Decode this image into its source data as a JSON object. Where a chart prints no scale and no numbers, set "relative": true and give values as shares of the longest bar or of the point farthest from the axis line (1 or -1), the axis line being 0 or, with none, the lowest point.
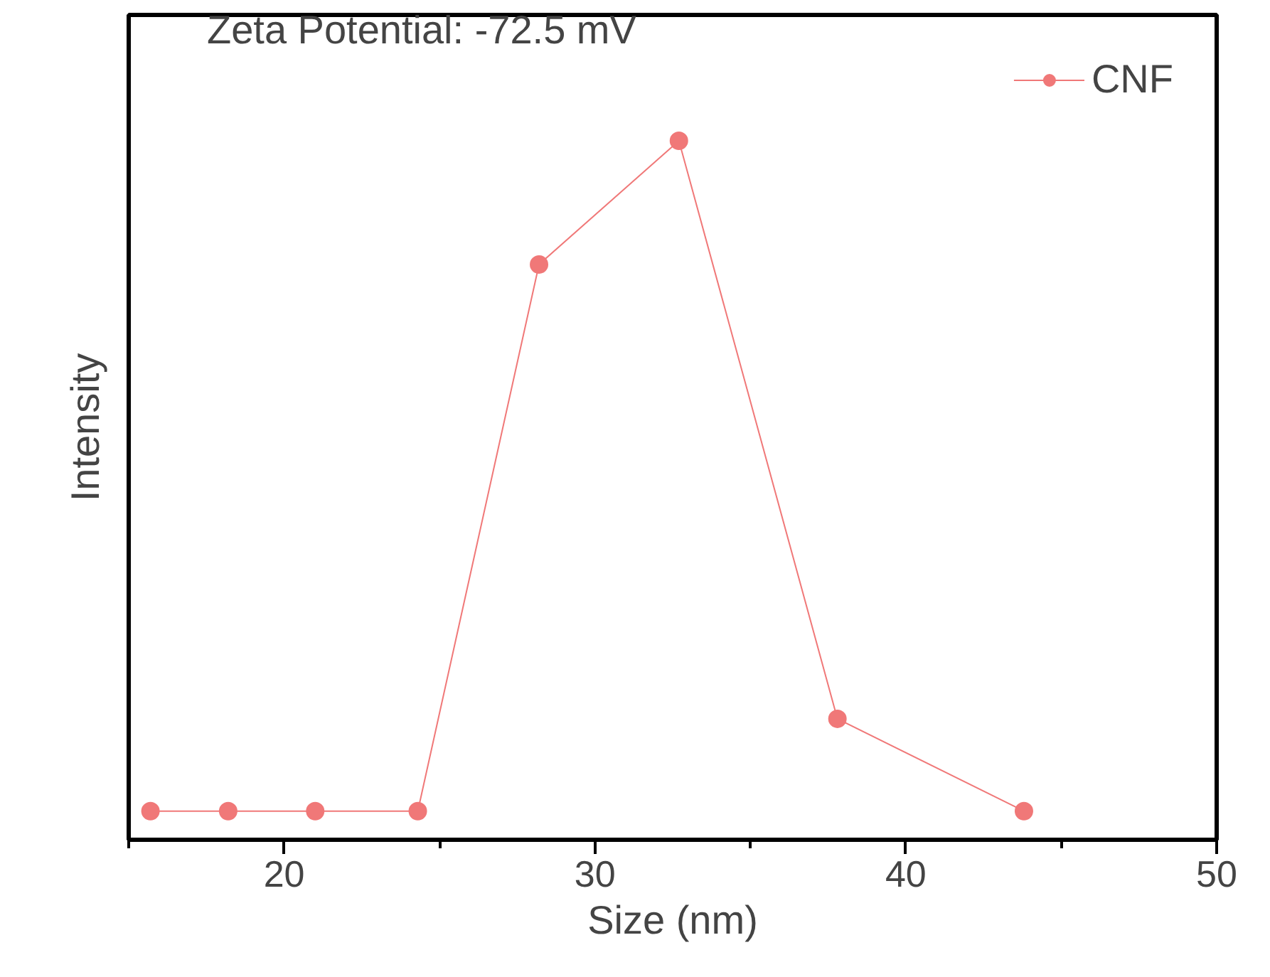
{
  "chart_data": {
    "type": "line",
    "xlabel": "Size (nm)",
    "ylabel": "Intensity",
    "annotations": [
      "Zeta Potential: -72.5 mV"
    ],
    "relative": true,
    "xlim": [
      15,
      50
    ],
    "xticks": [
      20,
      30,
      40,
      50
    ],
    "series": [
      {
        "name": "CNF",
        "color": "#f07878",
        "x": [
          15.7,
          18.2,
          21.0,
          24.3,
          28.2,
          32.7,
          37.8,
          43.8
        ],
        "values": [
          0.041,
          0.041,
          0.041,
          0.041,
          0.823,
          1,
          0.173,
          0.041
        ]
      }
    ],
    "marker": "circle",
    "legend": "top right",
    "grid": false
  }
}
